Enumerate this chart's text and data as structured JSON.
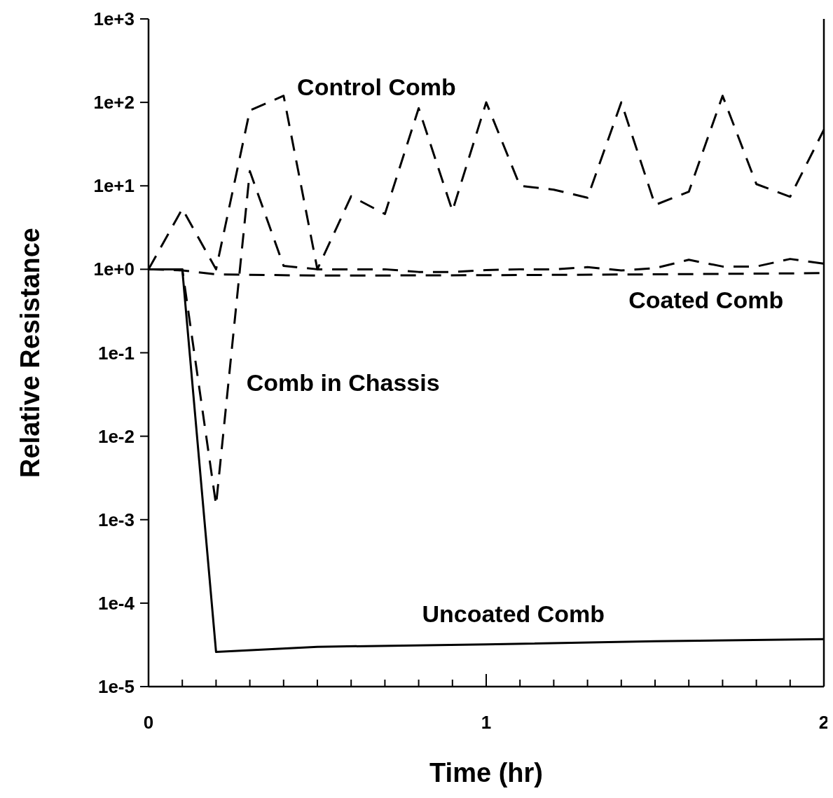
{
  "chart_data": {
    "type": "line",
    "xlabel": "Time (hr)",
    "ylabel": "Relative Resistance",
    "log": "y",
    "grid": false,
    "legend": false,
    "marker": "none",
    "xlim": [
      0,
      2
    ],
    "ylim": [
      1e-05,
      1000
    ],
    "xticks": [
      0,
      {
        "value": 0.1,
        "label": null
      },
      {
        "value": 0.2,
        "label": null
      },
      {
        "value": 0.3,
        "label": null
      },
      {
        "value": 0.4,
        "label": null
      },
      {
        "value": 0.5,
        "label": null
      },
      {
        "value": 0.6,
        "label": null
      },
      {
        "value": 0.7,
        "label": null
      },
      {
        "value": 0.8,
        "label": null
      },
      {
        "value": 0.9,
        "label": null
      },
      1,
      {
        "value": 1.1,
        "label": null
      },
      {
        "value": 1.2,
        "label": null
      },
      {
        "value": 1.3,
        "label": null
      },
      {
        "value": 1.4,
        "label": null
      },
      {
        "value": 1.5,
        "label": null
      },
      {
        "value": 1.6,
        "label": null
      },
      {
        "value": 1.7,
        "label": null
      },
      {
        "value": 1.8,
        "label": null
      },
      {
        "value": 1.9,
        "label": null
      },
      2
    ],
    "yticks": [
      {
        "value": 1e-05,
        "label": "1e-5"
      },
      {
        "value": 0.0001,
        "label": "1e-4"
      },
      {
        "value": 0.001,
        "label": "1e-3"
      },
      {
        "value": 0.01,
        "label": "1e-2"
      },
      {
        "value": 0.1,
        "label": "1e-1"
      },
      {
        "value": 1,
        "label": "1e+0"
      },
      {
        "value": 10,
        "label": "1e+1"
      },
      {
        "value": 100,
        "label": "1e+2"
      },
      {
        "value": 1000,
        "label": "1e+3"
      }
    ],
    "x": [
      0,
      0.1,
      0.2,
      0.3,
      0.4,
      0.5,
      0.6,
      0.7,
      0.8,
      0.9,
      1.0,
      1.1,
      1.2,
      1.3,
      1.4,
      1.5,
      1.6,
      1.7,
      1.8,
      1.9,
      2.0
    ],
    "series": [
      {
        "name": "Control Comb",
        "color": "#000000",
        "line_style": "dashed",
        "values": [
          1,
          5.3,
          1,
          80,
          120,
          1,
          7.5,
          4.6,
          85,
          5,
          100,
          10,
          9,
          7.2,
          100,
          5.9,
          8.5,
          120,
          10.5,
          7.4,
          47
        ]
      },
      {
        "name": "Comb in Chassis",
        "color": "#000000",
        "line_style": "dashed",
        "values": [
          1,
          1,
          0.0015,
          15,
          1.1,
          1,
          1,
          1,
          0.93,
          0.93,
          0.98,
          1,
          1,
          1.06,
          0.97,
          1.03,
          1.3,
          1.08,
          1.08,
          1.33,
          1.17
        ]
      },
      {
        "name": "Coated Comb",
        "color": "#000000",
        "line_style": "dashed",
        "x": [
          0,
          0.1,
          0.2,
          0.5,
          1.0,
          1.5,
          2.0
        ],
        "values": [
          1,
          0.97,
          0.87,
          0.84,
          0.85,
          0.87,
          0.9
        ]
      },
      {
        "name": "Uncoated Comb",
        "color": "#000000",
        "line_style": "solid",
        "x": [
          0,
          0.1,
          0.2,
          0.5,
          1.0,
          1.5,
          2.0
        ],
        "values": [
          1,
          1,
          2.6e-05,
          3e-05,
          3.2e-05,
          3.5e-05,
          3.7e-05
        ]
      }
    ]
  }
}
